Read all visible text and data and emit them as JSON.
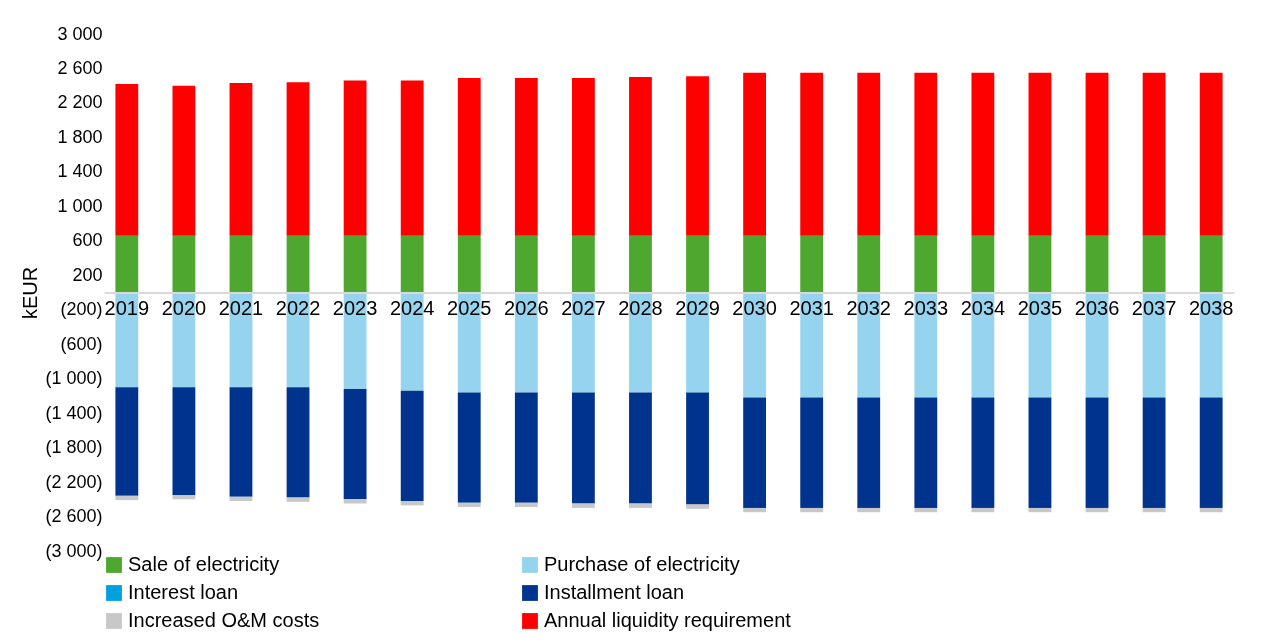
{
  "chart_data": {
    "type": "bar",
    "stacked": true,
    "ylabel": "kEUR",
    "categories": [
      "2019",
      "2020",
      "2021",
      "2022",
      "2023",
      "2024",
      "2025",
      "2026",
      "2027",
      "2028",
      "2029",
      "2030",
      "2031",
      "2032",
      "2033",
      "2034",
      "2035",
      "2036",
      "2037",
      "2038"
    ],
    "series": [
      {
        "name": "Sale of electricity",
        "color": "#4ea72e",
        "values": [
          660,
          660,
          660,
          660,
          660,
          660,
          660,
          660,
          660,
          660,
          660,
          660,
          660,
          660,
          660,
          660,
          660,
          660,
          660,
          660
        ]
      },
      {
        "name": "Purchase of electricity",
        "color": "#95d3ee",
        "values": [
          -1100,
          -1100,
          -1100,
          -1100,
          -1120,
          -1140,
          -1160,
          -1160,
          -1160,
          -1160,
          -1160,
          -1220,
          -1220,
          -1220,
          -1220,
          -1220,
          -1220,
          -1220,
          -1220,
          -1220
        ]
      },
      {
        "name": "Interest loan",
        "color": "#00a0e0",
        "values": [
          0,
          0,
          0,
          0,
          0,
          0,
          0,
          0,
          0,
          0,
          0,
          0,
          0,
          0,
          0,
          0,
          0,
          0,
          0,
          0
        ]
      },
      {
        "name": "Installment loan",
        "color": "#00338e",
        "values": [
          -1260,
          -1250,
          -1270,
          -1280,
          -1280,
          -1280,
          -1280,
          -1280,
          -1290,
          -1290,
          -1300,
          -1280,
          -1280,
          -1280,
          -1280,
          -1280,
          -1280,
          -1280,
          -1280,
          -1280
        ]
      },
      {
        "name": "Increased O&M costs",
        "color": "#c8c8c8",
        "values": [
          -50,
          -50,
          -50,
          -50,
          -50,
          -50,
          -50,
          -50,
          -50,
          -50,
          -50,
          -50,
          -50,
          -50,
          -50,
          -50,
          -50,
          -50,
          -50,
          -50
        ]
      },
      {
        "name": "Annual liquidity requirement",
        "color": "#ff0000",
        "values": [
          1760,
          1740,
          1770,
          1780,
          1800,
          1800,
          1830,
          1830,
          1830,
          1840,
          1850,
          1890,
          1890,
          1890,
          1890,
          1890,
          1890,
          1890,
          1890,
          1890
        ]
      }
    ],
    "ylim": [
      -3000,
      3000
    ],
    "yticks": [
      {
        "value": 3000,
        "label": "3 000"
      },
      {
        "value": 2600,
        "label": "2 600"
      },
      {
        "value": 2200,
        "label": "2 200"
      },
      {
        "value": 1800,
        "label": "1 800"
      },
      {
        "value": 1400,
        "label": "1 400"
      },
      {
        "value": 1000,
        "label": "1 000"
      },
      600,
      200,
      {
        "value": -200,
        "label": "(200)"
      },
      {
        "value": -600,
        "label": "(600)"
      },
      {
        "value": -1000,
        "label": "(1 000)"
      },
      {
        "value": -1400,
        "label": "(1 400)"
      },
      {
        "value": -1800,
        "label": "(1 800)"
      },
      {
        "value": -2200,
        "label": "(2 200)"
      },
      {
        "value": -2600,
        "label": "(2 600)"
      },
      {
        "value": -3000,
        "label": "(3 000)"
      }
    ],
    "legend": "bottom"
  }
}
